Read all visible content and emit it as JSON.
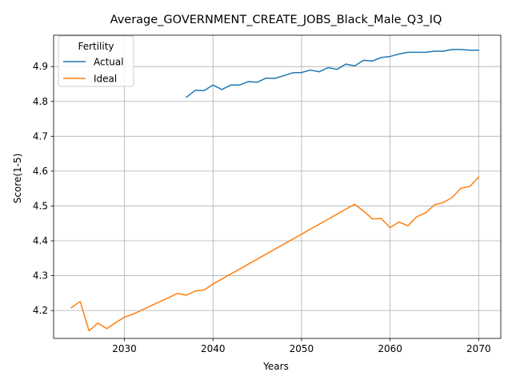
{
  "chart_data": {
    "type": "line",
    "title": "Average_GOVERNMENT_CREATE_JOBS_Black_Male_Q3_IQ",
    "xlabel": "Years",
    "ylabel": "Score(1-5)",
    "xlim": [
      2022,
      2072.5
    ],
    "ylim": [
      4.12,
      4.99
    ],
    "xticks": [
      2030,
      2040,
      2050,
      2060,
      2070
    ],
    "yticks": [
      4.2,
      4.3,
      4.4,
      4.5,
      4.6,
      4.7,
      4.8,
      4.9
    ],
    "grid": true,
    "legend": {
      "title": "Fertility",
      "placement": "top-left"
    },
    "series": [
      {
        "name": "Actual",
        "color": "#1f77b4",
        "x": [
          2037,
          2038,
          2039,
          2040,
          2041,
          2042,
          2043,
          2044,
          2045,
          2046,
          2047,
          2048,
          2049,
          2050,
          2051,
          2052,
          2053,
          2054,
          2055,
          2056,
          2057,
          2058,
          2059,
          2060,
          2061,
          2062,
          2063,
          2064,
          2065,
          2066,
          2067,
          2068,
          2069,
          2070
        ],
        "y": [
          4.812,
          4.832,
          4.831,
          4.847,
          4.834,
          4.847,
          4.847,
          4.857,
          4.855,
          4.867,
          4.866,
          4.874,
          4.882,
          4.883,
          4.89,
          4.885,
          4.897,
          4.892,
          4.907,
          4.902,
          4.918,
          4.916,
          4.926,
          4.929,
          4.936,
          4.941,
          4.941,
          4.941,
          4.944,
          4.944,
          4.949,
          4.949,
          4.947,
          4.947
        ]
      },
      {
        "name": "Ideal",
        "color": "#ff7f0e",
        "x": [
          2024,
          2025,
          2026,
          2027,
          2028,
          2029,
          2030,
          2031,
          2036,
          2037,
          2038,
          2039,
          2040,
          2056,
          2057,
          2058,
          2059,
          2060,
          2061,
          2062,
          2063,
          2064,
          2065,
          2066,
          2067,
          2068,
          2069,
          2070
        ],
        "y": [
          4.208,
          4.226,
          4.142,
          4.164,
          4.148,
          4.165,
          4.181,
          4.19,
          4.249,
          4.244,
          4.256,
          4.259,
          4.276,
          4.505,
          4.485,
          4.463,
          4.464,
          4.438,
          4.454,
          4.443,
          4.469,
          4.48,
          4.503,
          4.51,
          4.524,
          4.551,
          4.556,
          4.583
        ]
      }
    ]
  }
}
